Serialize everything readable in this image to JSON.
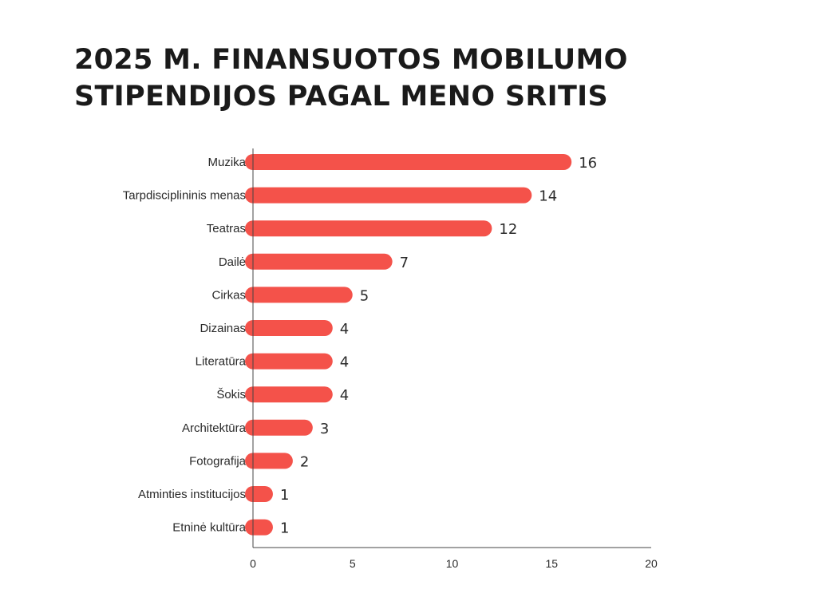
{
  "chart_data": {
    "type": "bar",
    "orientation": "horizontal",
    "title": "2025 M. FINANSUOTOS MOBILUMO STIPENDIJOS PAGAL MENO SRITIS",
    "categories": [
      "Muzika",
      "Tarpdisciplininis menas",
      "Teatras",
      "Dailė",
      "Cirkas",
      "Dizainas",
      "Literatūra",
      "Šokis",
      "Architektūra",
      "Fotografija",
      "Atminties institucijos",
      "Etninė kultūra"
    ],
    "values": [
      16,
      14,
      12,
      7,
      5,
      4,
      4,
      4,
      3,
      2,
      1,
      1
    ],
    "xlim": [
      0,
      20
    ],
    "xticks": [
      0,
      5,
      10,
      15,
      20
    ],
    "grid": false,
    "bar_color": "#f4524a"
  }
}
